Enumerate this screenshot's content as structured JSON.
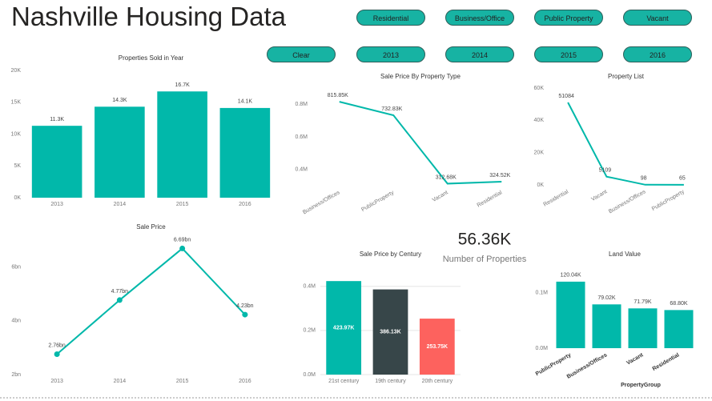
{
  "header": {
    "title": "Nashville Housing Data"
  },
  "buttons": [
    [
      "Residential",
      "Business/Office",
      "Public Property",
      "Vacant"
    ],
    [
      "Clear",
      "2013",
      "2014",
      "2015",
      "2016"
    ]
  ],
  "kpi": {
    "value": "56.36K",
    "label": "Number of Properties"
  },
  "chart_data": [
    {
      "type": "bar",
      "title": "Properties Sold in Year",
      "categories": [
        "2013",
        "2014",
        "2015",
        "2016"
      ],
      "values": [
        11300,
        14300,
        16700,
        14100
      ],
      "value_labels": [
        "11.3K",
        "14.3K",
        "16.7K",
        "14.1K"
      ],
      "color": "#01b8aa",
      "ylim": [
        0,
        20000
      ],
      "yticks": [
        {
          "value": 0,
          "label": "0K"
        },
        {
          "value": 5000,
          "label": "5K"
        },
        {
          "value": 10000,
          "label": "10K"
        },
        {
          "value": 15000,
          "label": "15K"
        },
        {
          "value": 20000,
          "label": "20K"
        }
      ]
    },
    {
      "type": "line",
      "title": "Sale Price By Property Type",
      "categories": [
        "Business/Offices",
        "PublicProperty",
        "Vacant",
        "Residential"
      ],
      "values": [
        815850,
        732830,
        312680,
        324520
      ],
      "value_labels": [
        "815.85K",
        "732.83K",
        "312.68K",
        "324.52K"
      ],
      "color": "#01b8aa",
      "ylim": [
        300000,
        900000
      ],
      "yticks": [
        {
          "value": 400000,
          "label": "0.4M"
        },
        {
          "value": 600000,
          "label": "0.6M"
        },
        {
          "value": 800000,
          "label": "0.8M"
        }
      ]
    },
    {
      "type": "line",
      "title": "Property List",
      "categories": [
        "Residential",
        "Vacant",
        "Business/Offices",
        "PublicProperty"
      ],
      "values": [
        51084,
        5109,
        98,
        65
      ],
      "color": "#01b8aa",
      "ylim": [
        0,
        60000
      ],
      "yticks": [
        {
          "value": 0,
          "label": "0K"
        },
        {
          "value": 20000,
          "label": "20K"
        },
        {
          "value": 40000,
          "label": "40K"
        },
        {
          "value": 60000,
          "label": "60K"
        }
      ]
    },
    {
      "type": "line",
      "title": "Sale Price",
      "categories": [
        "2013",
        "2014",
        "2015",
        "2016"
      ],
      "values": [
        2760000000,
        4770000000,
        6690000000,
        4230000000
      ],
      "value_labels": [
        "2.76bn",
        "4.77bn",
        "6.69bn",
        "4.23bn"
      ],
      "color": "#01b8aa",
      "markers": true,
      "ylim": [
        2000000000,
        7000000000
      ],
      "yticks": [
        {
          "value": 2000000000,
          "label": "2bn"
        },
        {
          "value": 4000000000,
          "label": "4bn"
        },
        {
          "value": 6000000000,
          "label": "6bn"
        }
      ]
    },
    {
      "type": "bar",
      "title": "Sale Price by Century",
      "categories": [
        "21st century",
        "19th century",
        "20th century"
      ],
      "values": [
        423970,
        386130,
        253750
      ],
      "value_labels": [
        "423.97K",
        "386.13K",
        "253.75K"
      ],
      "colors": [
        "#01b8aa",
        "#374649",
        "#fd625e"
      ],
      "grid": true,
      "ylim": [
        0,
        450000
      ],
      "yticks": [
        {
          "value": 0,
          "label": "0.0M"
        },
        {
          "value": 200000,
          "label": "0.2M"
        },
        {
          "value": 400000,
          "label": "0.4M"
        }
      ]
    },
    {
      "type": "bar",
      "title": "Land Value",
      "x_label": "PropertyGroup",
      "categories": [
        "PublicProperty",
        "Business/Offices",
        "Vacant",
        "Residential"
      ],
      "values": [
        120040,
        79020,
        71790,
        68800
      ],
      "value_labels": [
        "120.04K",
        "79.02K",
        "71.79K",
        "68.80K"
      ],
      "color": "#01b8aa",
      "ylim": [
        0,
        130000
      ],
      "yticks": [
        {
          "value": 0,
          "label": "0.0M"
        },
        {
          "value": 100000,
          "label": "0.1M"
        }
      ]
    }
  ]
}
